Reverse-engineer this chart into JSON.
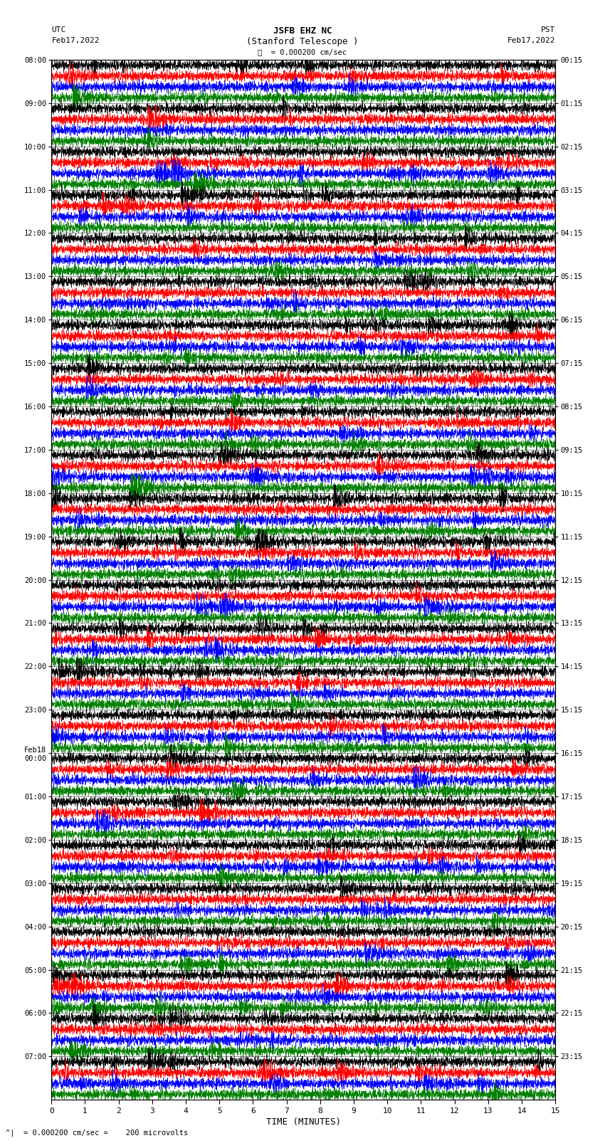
{
  "title_line1": "JSFB EHZ NC",
  "title_line2": "(Stanford Telescope )",
  "scale_text": "= 0.000200 cm/sec",
  "bottom_text": "= 0.000200 cm/sec =    200 microvolts",
  "xlabel": "TIME (MINUTES)",
  "left_header1": "UTC",
  "left_header2": "Feb17,2022",
  "right_header1": "PST",
  "right_header2": "Feb17,2022",
  "utc_labels": [
    "08:00",
    "09:00",
    "10:00",
    "11:00",
    "12:00",
    "13:00",
    "14:00",
    "15:00",
    "16:00",
    "17:00",
    "18:00",
    "19:00",
    "20:00",
    "21:00",
    "22:00",
    "23:00",
    "Feb18\n00:00",
    "01:00",
    "02:00",
    "03:00",
    "04:00",
    "05:00",
    "06:00",
    "07:00"
  ],
  "pst_labels": [
    "00:15",
    "01:15",
    "02:15",
    "03:15",
    "04:15",
    "05:15",
    "06:15",
    "07:15",
    "08:15",
    "09:15",
    "10:15",
    "11:15",
    "12:15",
    "13:15",
    "14:15",
    "15:15",
    "16:15",
    "17:15",
    "18:15",
    "19:15",
    "20:15",
    "21:15",
    "22:15",
    "23:15"
  ],
  "num_hours": 24,
  "traces_per_hour": 4,
  "colors": [
    "black",
    "red",
    "blue",
    "green"
  ],
  "fig_width": 8.5,
  "fig_height": 16.13,
  "bg_color": "white",
  "x_min": 0,
  "x_max": 15,
  "x_ticks": [
    0,
    1,
    2,
    3,
    4,
    5,
    6,
    7,
    8,
    9,
    10,
    11,
    12,
    13,
    14,
    15
  ],
  "seed": 42,
  "amplitude": 0.42,
  "samples_per_minute": 200
}
